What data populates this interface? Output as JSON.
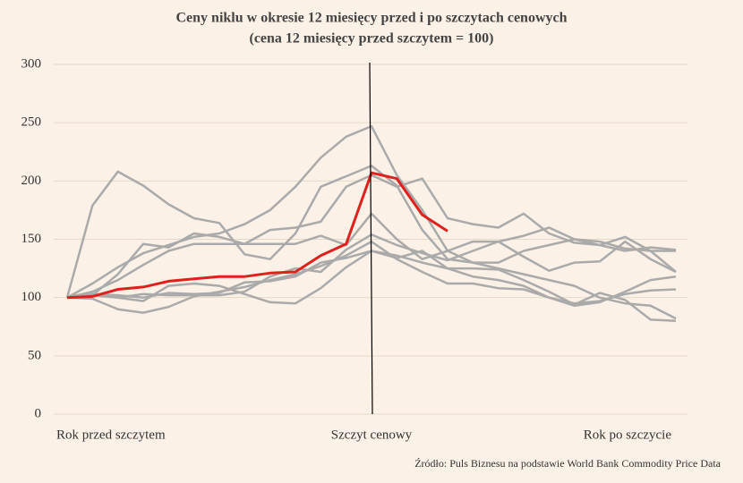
{
  "chart_data": {
    "type": "line",
    "title": "Ceny niklu w okresie 12 miesięcy przed i po szczytach cenowych",
    "subtitle": "(cena 12 miesięcy przed szczytem = 100)",
    "source": "Źródło: Puls Biznesu na podstawie World Bank Commodity Price Data",
    "categories": [
      "Rok przed szczytem",
      null,
      null,
      null,
      null,
      null,
      null,
      null,
      null,
      null,
      null,
      null,
      "Szczyt cenowy",
      null,
      null,
      null,
      null,
      null,
      null,
      null,
      null,
      null,
      null,
      null,
      "Rok po szczycie"
    ],
    "ylim": [
      0,
      300
    ],
    "yticks": [
      0,
      50,
      100,
      150,
      200,
      250,
      300
    ],
    "grid": true,
    "series": [
      {
        "color": "#aaaaaa",
        "values": [
          100,
          179,
          208,
          196,
          180,
          168,
          164,
          137,
          133,
          155,
          195,
          204,
          213,
          196,
          158,
          133,
          130,
          130,
          140,
          145,
          150,
          148,
          142,
          140,
          140
        ]
      },
      {
        "color": "#aaaaaa",
        "values": [
          100,
          112,
          126,
          138,
          145,
          152,
          155,
          163,
          175,
          195,
          220,
          238,
          247,
          205,
          175,
          140,
          130,
          125,
          120,
          115,
          110,
          100,
          95,
          93,
          82
        ]
      },
      {
        "color": "#aaaaaa",
        "values": [
          100,
          102,
          120,
          146,
          143,
          155,
          152,
          146,
          158,
          160,
          165,
          195,
          205,
          195,
          202,
          168,
          163,
          160,
          172,
          155,
          147,
          145,
          140,
          143,
          141
        ]
      },
      {
        "color": "#aaaaaa",
        "values": [
          100,
          105,
          115,
          128,
          140,
          146,
          146,
          146,
          146,
          146,
          153,
          145,
          172,
          150,
          133,
          140,
          148,
          148,
          153,
          160,
          150,
          145,
          152,
          140,
          122
        ]
      },
      {
        "color": "#aaaaaa",
        "values": [
          100,
          99,
          90,
          87,
          92,
          101,
          105,
          109,
          115,
          120,
          127,
          136,
          148,
          133,
          122,
          112,
          112,
          108,
          107,
          100,
          95,
          97,
          103,
          106,
          107
        ]
      },
      {
        "color": "#aaaaaa",
        "values": [
          100,
          102,
          100,
          97,
          110,
          112,
          110,
          103,
          96,
          95,
          108,
          126,
          140,
          136,
          130,
          125,
          118,
          115,
          110,
          100,
          93,
          96,
          105,
          115,
          118
        ]
      },
      {
        "color": "#aaaaaa",
        "values": [
          100,
          103,
          100,
          103,
          102,
          102,
          102,
          105,
          118,
          125,
          122,
          141,
          154,
          145,
          138,
          132,
          140,
          148,
          135,
          123,
          130,
          131,
          148,
          133,
          122
        ]
      },
      {
        "color": "#aaaaaa",
        "values": [
          100,
          103,
          102,
          100,
          104,
          103,
          104,
          113,
          114,
          118,
          130,
          134,
          140,
          134,
          140,
          125,
          125,
          124,
          115,
          105,
          94,
          104,
          98,
          81,
          80
        ]
      },
      {
        "color": "#e0201c",
        "values": [
          100,
          101,
          107,
          109,
          114,
          116,
          118,
          118,
          121,
          122,
          136,
          146,
          207,
          202,
          171,
          157,
          null,
          null,
          null,
          null,
          null,
          null,
          null,
          null,
          null
        ]
      }
    ]
  }
}
